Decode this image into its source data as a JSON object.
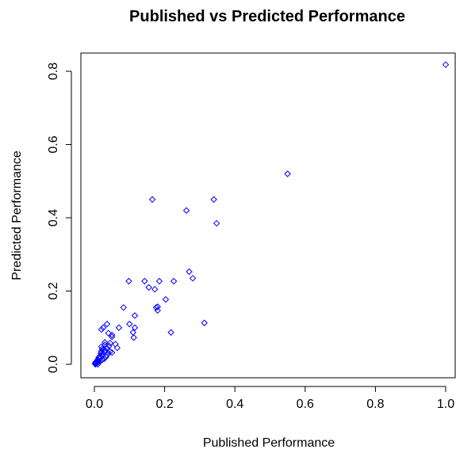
{
  "chart_data": {
    "type": "scatter",
    "title": "Published vs Predicted Performance",
    "xlabel": "Published Performance",
    "ylabel": "Predicted Performance",
    "xlim": [
      0.0,
      1.0
    ],
    "ylim": [
      0.0,
      0.8
    ],
    "x_ticks": [
      "0.0",
      "0.2",
      "0.4",
      "0.6",
      "0.8",
      "1.0"
    ],
    "y_ticks": [
      "0.0",
      "0.2",
      "0.4",
      "0.6",
      "0.8"
    ],
    "grid": false,
    "marker": "diamond-open",
    "color": "#0000ff",
    "series": [
      {
        "x": [
          1.0,
          0.55,
          0.165,
          0.34,
          0.262,
          0.348,
          0.098,
          0.143,
          0.27,
          0.28,
          0.185,
          0.226,
          0.155,
          0.172,
          0.203,
          0.083,
          0.176,
          0.18,
          0.18,
          0.115,
          0.313,
          0.218,
          0.1,
          0.115,
          0.11,
          0.07,
          0.112,
          0.02,
          0.025,
          0.036,
          0.04,
          0.05,
          0.05,
          0.06,
          0.065,
          0.045,
          0.03,
          0.03,
          0.035,
          0.025,
          0.028,
          0.04,
          0.05,
          0.02,
          0.02,
          0.015,
          0.015,
          0.018,
          0.022,
          0.012,
          0.01,
          0.01,
          0.008,
          0.006,
          0.005,
          0.004,
          0.003,
          0.002,
          0.012,
          0.015,
          0.025,
          0.03,
          0.035,
          0.02,
          0.022,
          0.018,
          0.009,
          0.028,
          0.033,
          0.042,
          0.045
        ],
        "y": [
          0.818,
          0.52,
          0.45,
          0.45,
          0.42,
          0.385,
          0.227,
          0.227,
          0.253,
          0.235,
          0.227,
          0.227,
          0.21,
          0.205,
          0.177,
          0.155,
          0.155,
          0.147,
          0.157,
          0.133,
          0.113,
          0.087,
          0.11,
          0.1,
          0.087,
          0.1,
          0.073,
          0.095,
          0.1,
          0.11,
          0.085,
          0.075,
          0.08,
          0.055,
          0.045,
          0.058,
          0.06,
          0.053,
          0.045,
          0.04,
          0.035,
          0.03,
          0.032,
          0.035,
          0.025,
          0.02,
          0.015,
          0.01,
          0.012,
          0.01,
          0.005,
          0.0,
          0.008,
          0.004,
          0.002,
          0.006,
          0.0,
          0.003,
          0.018,
          0.022,
          0.028,
          0.038,
          0.025,
          0.048,
          0.042,
          0.03,
          0.012,
          0.015,
          0.02,
          0.05,
          0.035
        ]
      }
    ]
  }
}
